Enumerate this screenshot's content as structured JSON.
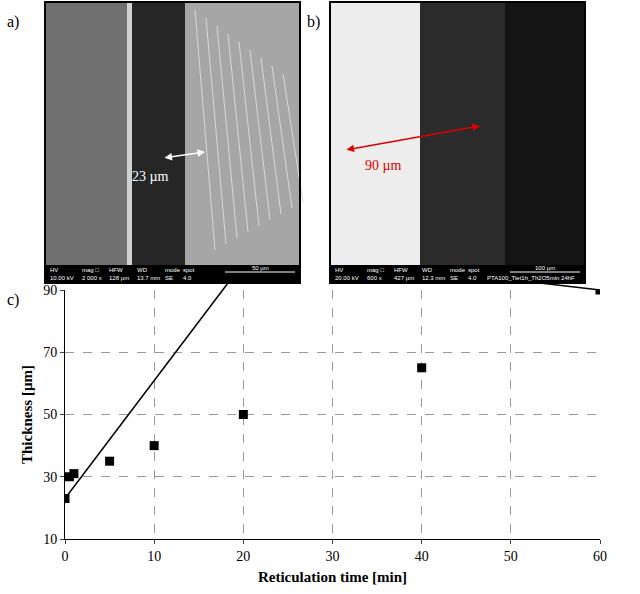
{
  "panels": {
    "a": {
      "label": "a)",
      "measurement": "23 µm",
      "info_bar": {
        "labels": [
          "HV",
          "mag □",
          "HFW",
          "WD",
          "mode",
          "spot"
        ],
        "values": [
          "10.00 kV",
          "2 000 x",
          "128 µm",
          "13.7 mm",
          "SE",
          "4.0"
        ],
        "scale_bar": "50 µm"
      }
    },
    "b": {
      "label": "b)",
      "measurement": "90 µm",
      "info_bar": {
        "labels": [
          "HV",
          "mag □",
          "HFW",
          "WD",
          "mode",
          "spot"
        ],
        "values": [
          "20.00 kV",
          "600 x",
          "427 µm",
          "12.3 mm",
          "SE",
          "4.0"
        ],
        "scale_bar": "100 µm",
        "sample": "PTA100_Tiet1h_Th2O5min 24hF"
      }
    }
  },
  "chart_data": {
    "label": "c)",
    "type": "scatter",
    "x": [
      0,
      0.5,
      1,
      5,
      10,
      20,
      40,
      60
    ],
    "values": [
      23,
      30,
      31,
      35,
      40,
      50,
      65,
      90
    ],
    "x_label": "Reticulation time [min]",
    "y_label": "Thickness [µm]",
    "xlim": [
      0,
      60
    ],
    "xticks": [
      0,
      10,
      20,
      30,
      40,
      50,
      60
    ],
    "ylim": [
      10,
      90
    ],
    "yticks": [
      10,
      30,
      50,
      70,
      90
    ],
    "grid": true,
    "marker": "square",
    "color": "#000000"
  }
}
